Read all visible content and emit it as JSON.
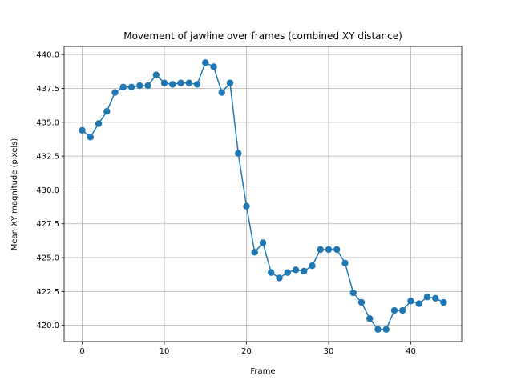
{
  "chart_data": {
    "type": "line",
    "title": "Movement of jawline over frames (combined XY distance)",
    "xlabel": "Frame",
    "ylabel": "Mean XY magnitude (pixels)",
    "xlim": [
      -2.2,
      46.2
    ],
    "ylim": [
      418.8,
      440.6
    ],
    "xticks": [
      0,
      10,
      20,
      30,
      40
    ],
    "yticks": [
      420.0,
      422.5,
      425.0,
      427.5,
      430.0,
      432.5,
      435.0,
      437.5,
      440.0
    ],
    "xtick_labels": [
      "0",
      "10",
      "20",
      "30",
      "40"
    ],
    "ytick_labels": [
      "420.0",
      "422.5",
      "425.0",
      "427.5",
      "430.0",
      "432.5",
      "435.0",
      "437.5",
      "440.0"
    ],
    "grid": true,
    "marker": "circle",
    "color": "#1f77b4",
    "x": [
      0,
      1,
      2,
      3,
      4,
      5,
      6,
      7,
      8,
      9,
      10,
      11,
      12,
      13,
      14,
      15,
      16,
      17,
      18,
      19,
      20,
      21,
      22,
      23,
      24,
      25,
      26,
      27,
      28,
      29,
      30,
      31,
      32,
      33,
      34,
      35,
      36,
      37,
      38,
      39,
      40,
      41,
      42,
      43,
      44
    ],
    "y": [
      434.4,
      433.9,
      434.9,
      435.8,
      437.2,
      437.6,
      437.6,
      437.7,
      437.7,
      438.5,
      437.9,
      437.8,
      437.9,
      437.9,
      437.8,
      439.4,
      439.1,
      437.2,
      437.9,
      432.7,
      428.8,
      425.4,
      426.1,
      423.9,
      423.5,
      423.9,
      424.1,
      424.0,
      424.4,
      425.6,
      425.6,
      425.6,
      424.6,
      422.4,
      421.7,
      420.5,
      419.7,
      419.7,
      421.1,
      421.1,
      421.8,
      421.6,
      422.1,
      422.0,
      421.7
    ]
  }
}
